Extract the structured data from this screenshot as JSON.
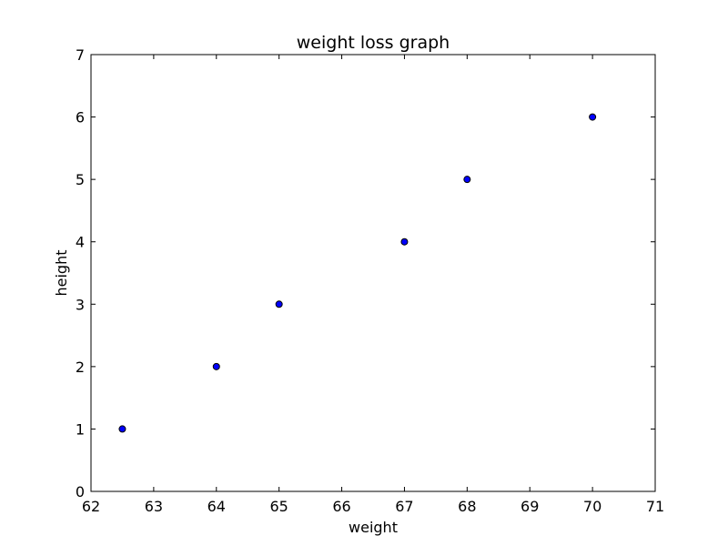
{
  "chart_data": {
    "type": "scatter",
    "title": "weight loss graph",
    "xlabel": "weight",
    "ylabel": "height",
    "xlim": [
      62,
      71
    ],
    "ylim": [
      0,
      7
    ],
    "xticks": [
      "62",
      "63",
      "64",
      "65",
      "66",
      "67",
      "68",
      "69",
      "70",
      "71"
    ],
    "yticks": [
      "0",
      "1",
      "2",
      "3",
      "4",
      "5",
      "6",
      "7"
    ],
    "grid": false,
    "series": [
      {
        "x": [
          62.5,
          64,
          65,
          67,
          68,
          70
        ],
        "y": [
          1,
          2,
          3,
          4,
          5,
          6
        ]
      }
    ],
    "marker_color": "#0000ff",
    "marker_edge_color": "#000000"
  }
}
